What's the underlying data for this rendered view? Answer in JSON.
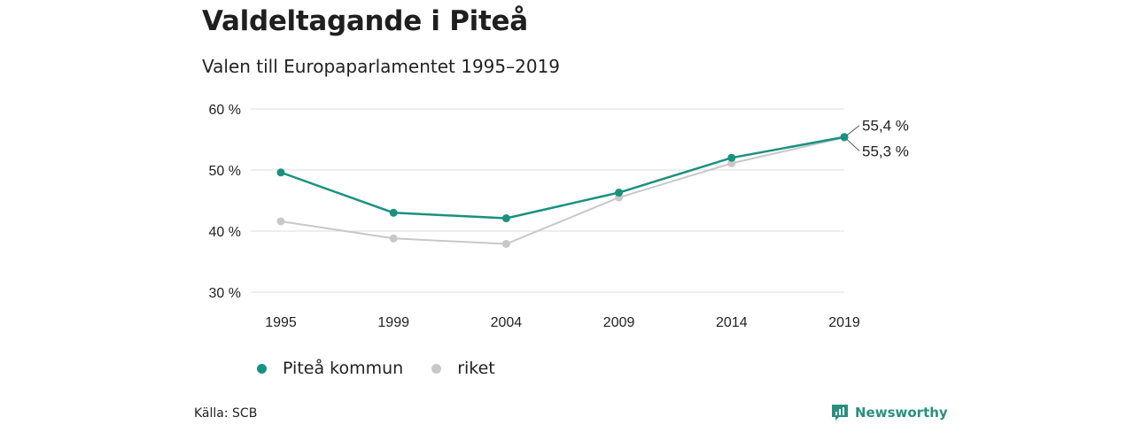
{
  "title": "Valdeltagande i Piteå",
  "subtitle": "Valen till Europaparlamentet 1995–2019",
  "source": "Källa: SCB",
  "brand": {
    "name": "Newsworthy",
    "color": "#2a8f7f",
    "icon": "newsworthy-logo-icon"
  },
  "chart_data": {
    "type": "line",
    "categories": [
      "1995",
      "1999",
      "2004",
      "2009",
      "2014",
      "2019"
    ],
    "y_tick_labels": [
      "30 %",
      "40 %",
      "50 %",
      "60 %"
    ],
    "y_ticks": [
      30,
      40,
      50,
      60
    ],
    "ylim": [
      30,
      60
    ],
    "grid": true,
    "legend_position": "bottom-left",
    "series": [
      {
        "name": "Piteå kommun",
        "color": "#1a9180",
        "values": [
          49.6,
          43.0,
          42.1,
          46.3,
          52.0,
          55.4
        ],
        "end_label": "55,4 %"
      },
      {
        "name": "riket",
        "color": "#c8c8c8",
        "values": [
          41.6,
          38.8,
          37.9,
          45.5,
          51.1,
          55.3
        ],
        "end_label": "55,3 %"
      }
    ]
  }
}
